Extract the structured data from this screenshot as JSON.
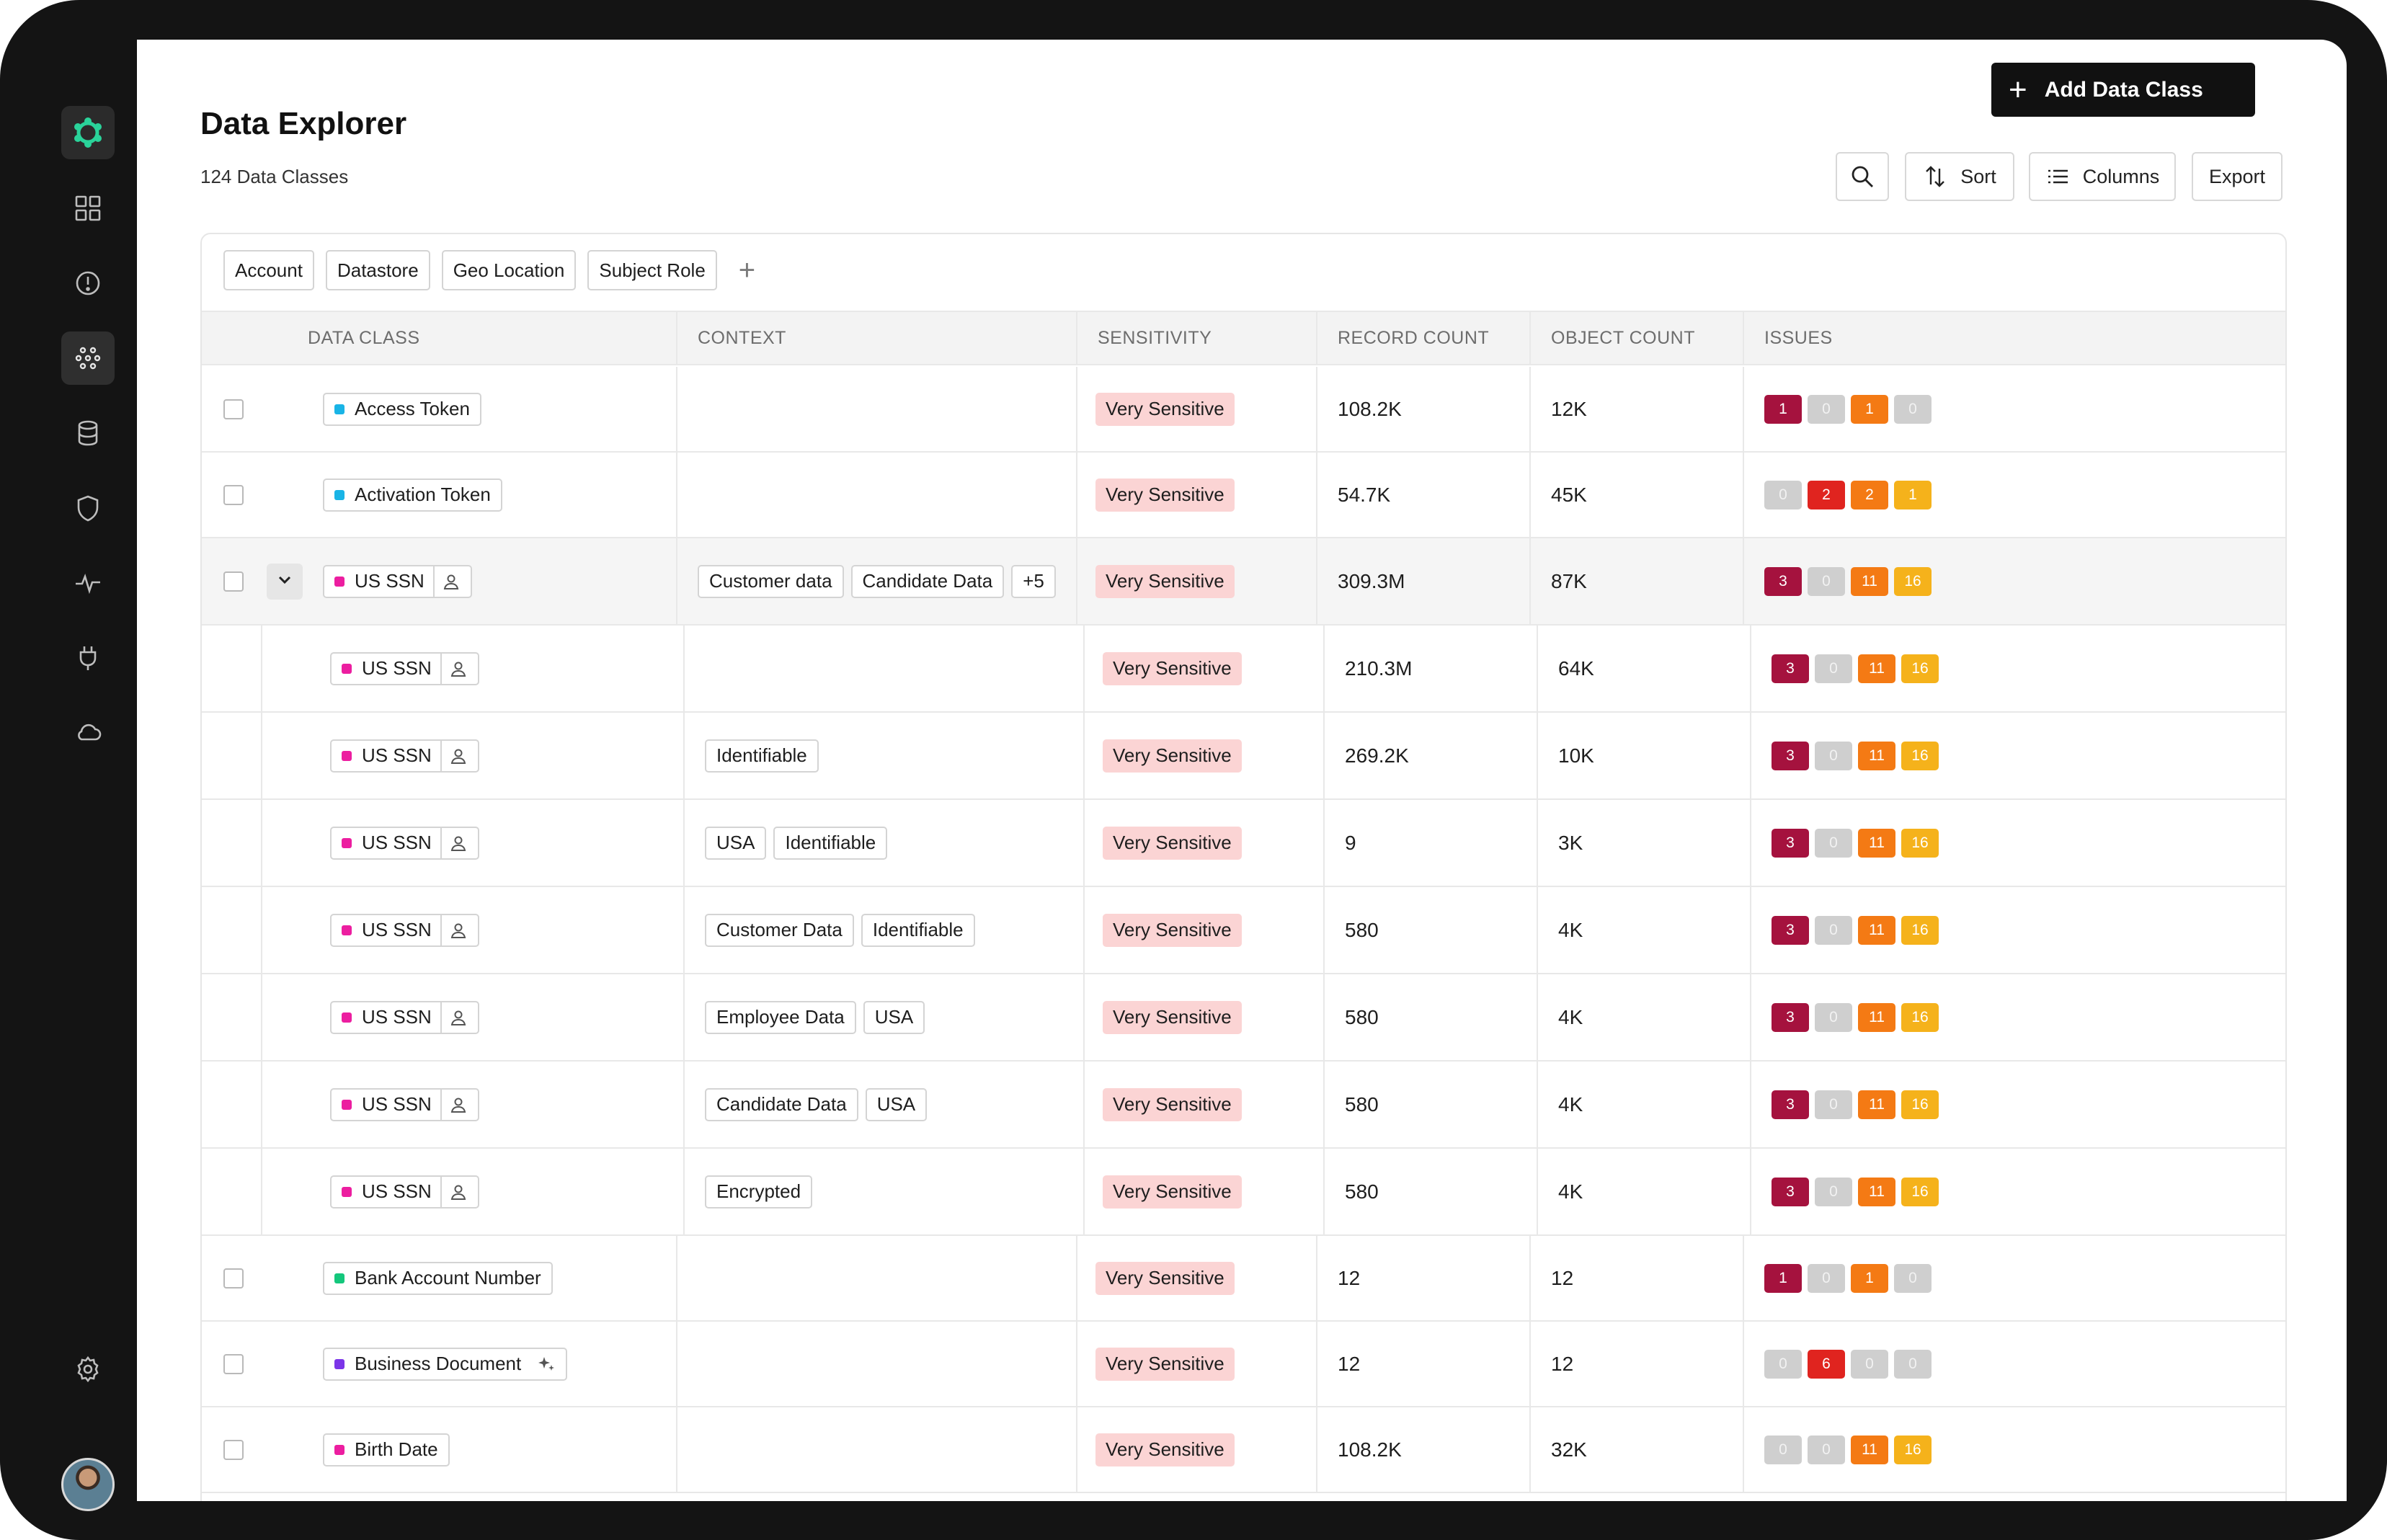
{
  "page": {
    "title": "Data Explorer",
    "count_label": "124 Data Classes",
    "add_button": "Add Data Class"
  },
  "toolbar": {
    "sort_label": "Sort",
    "columns_label": "Columns",
    "export_label": "Export"
  },
  "filters": [
    "Account",
    "Datastore",
    "Geo Location",
    "Subject Role"
  ],
  "columns": {
    "data_class": "DATA CLASS",
    "context": "CONTEXT",
    "sensitivity": "SENSITIVITY",
    "record_count": "RECORD COUNT",
    "object_count": "OBJECT COUNT",
    "issues": "ISSUES"
  },
  "colors": {
    "cyan": "#19b4e6",
    "pink": "#ec1ea0",
    "green": "#14c77c",
    "purple": "#7b35e8",
    "accent": "#2ad39a"
  },
  "rows": [
    {
      "kind": "top",
      "name": "Access Token",
      "dot": "cyan",
      "icon": "",
      "context": [],
      "sensitivity": "Very Sensitive",
      "records": "108.2K",
      "objects": "12K",
      "issues": [
        1,
        0,
        1,
        0
      ]
    },
    {
      "kind": "top",
      "name": "Activation Token",
      "dot": "cyan",
      "icon": "",
      "context": [],
      "sensitivity": "Very Sensitive",
      "records": "54.7K",
      "objects": "45K",
      "issues": [
        0,
        2,
        2,
        1
      ]
    },
    {
      "kind": "parent",
      "name": "US SSN",
      "dot": "pink",
      "icon": "user-icon",
      "context": [
        "Customer data",
        "Candidate Data",
        "+5"
      ],
      "sensitivity": "Very Sensitive",
      "records": "309.3M",
      "objects": "87K",
      "issues": [
        3,
        0,
        11,
        16
      ]
    },
    {
      "kind": "child",
      "name": "US SSN",
      "dot": "pink",
      "icon": "user-icon",
      "context": [],
      "sensitivity": "Very Sensitive",
      "records": "210.3M",
      "objects": "64K",
      "issues": [
        3,
        0,
        11,
        16
      ]
    },
    {
      "kind": "child",
      "name": "US SSN",
      "dot": "pink",
      "icon": "user-icon",
      "context": [
        "Identifiable"
      ],
      "sensitivity": "Very Sensitive",
      "records": "269.2K",
      "objects": "10K",
      "issues": [
        3,
        0,
        11,
        16
      ]
    },
    {
      "kind": "child",
      "name": "US SSN",
      "dot": "pink",
      "icon": "user-icon",
      "context": [
        "USA",
        "Identifiable"
      ],
      "sensitivity": "Very Sensitive",
      "records": "9",
      "objects": "3K",
      "issues": [
        3,
        0,
        11,
        16
      ]
    },
    {
      "kind": "child",
      "name": "US SSN",
      "dot": "pink",
      "icon": "user-icon",
      "context": [
        "Customer Data",
        "Identifiable"
      ],
      "sensitivity": "Very Sensitive",
      "records": "580",
      "objects": "4K",
      "issues": [
        3,
        0,
        11,
        16
      ]
    },
    {
      "kind": "child",
      "name": "US SSN",
      "dot": "pink",
      "icon": "user-icon",
      "context": [
        "Employee Data",
        "USA"
      ],
      "sensitivity": "Very Sensitive",
      "records": "580",
      "objects": "4K",
      "issues": [
        3,
        0,
        11,
        16
      ]
    },
    {
      "kind": "child",
      "name": "US SSN",
      "dot": "pink",
      "icon": "user-icon",
      "context": [
        "Candidate Data",
        "USA"
      ],
      "sensitivity": "Very Sensitive",
      "records": "580",
      "objects": "4K",
      "issues": [
        3,
        0,
        11,
        16
      ]
    },
    {
      "kind": "child",
      "name": "US SSN",
      "dot": "pink",
      "icon": "user-icon",
      "context": [
        "Encrypted"
      ],
      "sensitivity": "Very Sensitive",
      "records": "580",
      "objects": "4K",
      "issues": [
        3,
        0,
        11,
        16
      ]
    },
    {
      "kind": "top",
      "name": "Bank Account Number",
      "dot": "green",
      "icon": "",
      "context": [],
      "sensitivity": "Very Sensitive",
      "records": "12",
      "objects": "12",
      "issues": [
        1,
        0,
        1,
        0
      ]
    },
    {
      "kind": "top",
      "name": "Business Document",
      "dot": "purple",
      "icon": "sparkle-icon",
      "context": [],
      "sensitivity": "Very Sensitive",
      "records": "12",
      "objects": "12",
      "issues": [
        0,
        6,
        0,
        0
      ]
    },
    {
      "kind": "top",
      "name": "Birth Date",
      "dot": "pink",
      "icon": "",
      "context": [],
      "sensitivity": "Very Sensitive",
      "records": "108.2K",
      "objects": "32K",
      "issues": [
        0,
        0,
        11,
        16
      ]
    }
  ]
}
